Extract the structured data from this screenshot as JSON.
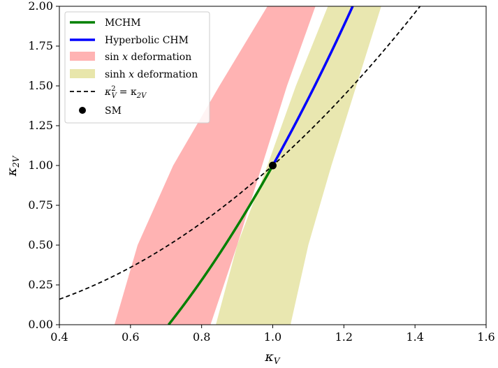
{
  "chart_data": {
    "type": "line",
    "xlabel": "κ",
    "xlabel_sub": "V",
    "ylabel": "κ",
    "ylabel_sub": "2V",
    "xlim": [
      0.4,
      1.6
    ],
    "ylim": [
      0.0,
      2.0
    ],
    "xticks": [
      "0.4",
      "0.6",
      "0.8",
      "1.0",
      "1.2",
      "1.4",
      "1.6"
    ],
    "xtick_values": [
      0.4,
      0.6,
      0.8,
      1.0,
      1.2,
      1.4,
      1.6
    ],
    "yticks": [
      "0.00",
      "0.25",
      "0.50",
      "0.75",
      "1.00",
      "1.25",
      "1.50",
      "1.75",
      "2.00"
    ],
    "ytick_values": [
      0.0,
      0.25,
      0.5,
      0.75,
      1.0,
      1.25,
      1.5,
      1.75,
      2.0
    ],
    "grid": false,
    "legend_position": "top-left",
    "colors": {
      "mchm": "#008000",
      "hyperbolic": "#0000ff",
      "sin_band": "#ff9999",
      "sinh_band": "#e0dd8f",
      "dashed": "#000000",
      "sm": "#000000"
    },
    "legend": [
      {
        "key": "mchm",
        "label": "MCHM",
        "style": "line"
      },
      {
        "key": "hyperbolic",
        "label": "Hyperbolic CHM",
        "style": "line"
      },
      {
        "key": "sin_band",
        "label_prefix": "sin",
        "label_var": "x",
        "label_suffix": "deformation",
        "style": "patch"
      },
      {
        "key": "sinh_band",
        "label_prefix": "sinh",
        "label_var": "x",
        "label_suffix": "deformation",
        "style": "patch"
      },
      {
        "key": "dashed",
        "label_math": "κ",
        "label_sup": "2",
        "label_sub1": "V",
        "label_eq": "= κ",
        "label_sub2": "2V",
        "style": "dashed"
      },
      {
        "key": "sm",
        "label": "SM",
        "style": "marker"
      }
    ],
    "series": [
      {
        "name": "MCHM",
        "key": "mchm",
        "kind": "curve",
        "x_from": 0.7071,
        "x_to": 1.0,
        "relation": "k2V = 2*kV^2 - 1"
      },
      {
        "name": "Hyperbolic CHM",
        "key": "hyperbolic",
        "kind": "curve",
        "x_from": 1.0,
        "x_to": 1.2247,
        "relation": "k2V = 2*kV^2 - 1"
      },
      {
        "name": "κ_V^2 = κ_2V",
        "key": "dashed",
        "kind": "curve",
        "x_from": 0.4,
        "x_to": 1.4142,
        "relation": "k2V = kV^2"
      },
      {
        "name": "sin x deformation",
        "key": "sin_band",
        "kind": "band",
        "left_edge": [
          [
            0.555,
            0.0
          ],
          [
            0.62,
            0.5
          ],
          [
            0.72,
            1.0
          ],
          [
            0.85,
            1.5
          ],
          [
            0.985,
            2.0
          ]
        ],
        "right_edge": [
          [
            0.825,
            0.0
          ],
          [
            0.9,
            0.5
          ],
          [
            0.97,
            1.0
          ],
          [
            1.04,
            1.5
          ],
          [
            1.12,
            2.0
          ]
        ]
      },
      {
        "name": "sinh x deformation",
        "key": "sinh_band",
        "kind": "band",
        "left_edge": [
          [
            0.84,
            0.0
          ],
          [
            0.9,
            0.5
          ],
          [
            0.985,
            1.0
          ],
          [
            1.065,
            1.5
          ],
          [
            1.155,
            2.0
          ]
        ],
        "right_edge": [
          [
            1.05,
            0.0
          ],
          [
            1.1,
            0.5
          ],
          [
            1.165,
            1.0
          ],
          [
            1.235,
            1.5
          ],
          [
            1.305,
            2.0
          ]
        ]
      }
    ],
    "points": [
      {
        "name": "SM",
        "key": "sm",
        "x": 1.0,
        "y": 1.0
      }
    ]
  }
}
